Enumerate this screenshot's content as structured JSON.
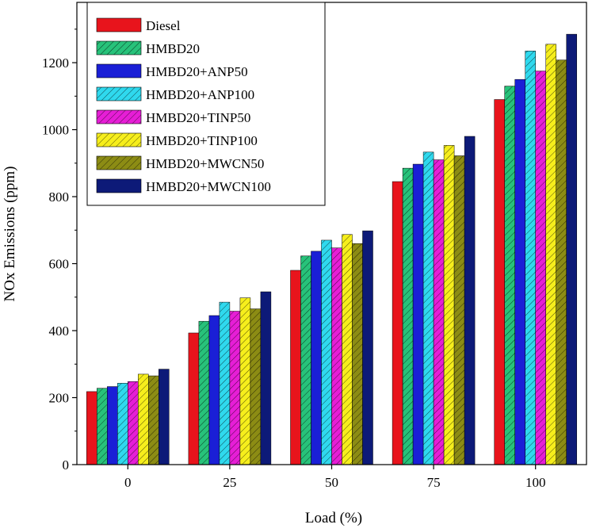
{
  "chart_data": {
    "type": "bar",
    "xlabel": "Load (%)",
    "ylabel": "NOx Emissions (ppm)",
    "categories": [
      "0",
      "25",
      "50",
      "75",
      "100"
    ],
    "ylim": [
      0,
      1380
    ],
    "yticks": [
      0,
      200,
      400,
      600,
      800,
      1000,
      1200
    ],
    "legend_position": "top-left",
    "grid": false,
    "series": [
      {
        "name": "Diesel",
        "color": "#e8141c",
        "hatch": false,
        "values": [
          218,
          393,
          580,
          845,
          1090
        ]
      },
      {
        "name": "HMBD20",
        "color": "#27c27a",
        "hatch": true,
        "values": [
          228,
          428,
          623,
          885,
          1130
        ]
      },
      {
        "name": "HMBD20+ANP50",
        "color": "#1a1fd6",
        "hatch": false,
        "values": [
          233,
          445,
          637,
          897,
          1150
        ]
      },
      {
        "name": "HMBD20+ANP100",
        "color": "#2fd9ee",
        "hatch": true,
        "values": [
          243,
          485,
          670,
          933,
          1235
        ]
      },
      {
        "name": "HMBD20+TINP50",
        "color": "#e61ed6",
        "hatch": true,
        "values": [
          248,
          458,
          647,
          910,
          1175
        ]
      },
      {
        "name": "HMBD20+TINP100",
        "color": "#f6ee1c",
        "hatch": true,
        "values": [
          270,
          498,
          687,
          953,
          1255
        ]
      },
      {
        "name": "HMBD20+MWCN50",
        "color": "#8c8c14",
        "hatch": true,
        "values": [
          265,
          465,
          660,
          922,
          1208
        ]
      },
      {
        "name": "HMBD20+MWCN100",
        "color": "#0d1a78",
        "hatch": false,
        "values": [
          285,
          516,
          698,
          980,
          1285
        ]
      }
    ]
  }
}
